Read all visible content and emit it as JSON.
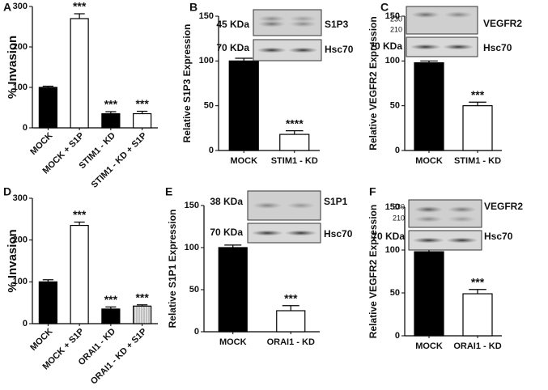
{
  "chart_data": [
    {
      "type": "bar",
      "panel_label": "A",
      "ylabel": "% Invasion",
      "categories": [
        "MOCK",
        "MOCK + S1P",
        "STIM1 - KD",
        "STIM1 - KD + S1P"
      ],
      "values": [
        100,
        270,
        35,
        35
      ],
      "errors": [
        3,
        12,
        5,
        6
      ],
      "annotations": [
        null,
        "***",
        "***",
        "***"
      ],
      "colors": [
        "#000000",
        "#ffffff",
        "#000000",
        "#ffffff"
      ],
      "hatch": [
        false,
        false,
        false,
        false
      ],
      "ylim": [
        0,
        300
      ],
      "yticks": [
        0,
        100,
        200,
        300
      ]
    },
    {
      "type": "bar",
      "panel_label": "B",
      "ylabel": "Relative S1P3 Expression",
      "categories": [
        "MOCK",
        "STIM1 - KD"
      ],
      "values": [
        100,
        18
      ],
      "errors": [
        3,
        4
      ],
      "annotations": [
        null,
        "****"
      ],
      "colors": [
        "#000000",
        "#ffffff"
      ],
      "hatch": [
        false,
        false
      ],
      "ylim": [
        0,
        150
      ],
      "yticks": [
        0,
        50,
        100,
        150
      ],
      "blot_labels": [
        "45 KDa",
        "S1P3",
        "70 KDa",
        "Hsc70"
      ]
    },
    {
      "type": "bar",
      "panel_label": "C",
      "ylabel": "Relative VEGFR2 Expression",
      "categories": [
        "MOCK",
        "STIM1 - KD"
      ],
      "values": [
        98,
        50
      ],
      "errors": [
        2,
        4
      ],
      "annotations": [
        null,
        "***"
      ],
      "colors": [
        "#000000",
        "#ffffff"
      ],
      "hatch": [
        false,
        false
      ],
      "ylim": [
        0,
        150
      ],
      "yticks": [
        0,
        50,
        100,
        150
      ],
      "blot_labels": [
        "230",
        "210",
        "VEGFR2",
        "70 KDa",
        "Hsc70"
      ]
    },
    {
      "type": "bar",
      "panel_label": "D",
      "ylabel": "% Invasion",
      "categories": [
        "MOCK",
        "MOCK + S1P",
        "ORAI1 - KD",
        "ORAI1 - KD + S1P"
      ],
      "values": [
        100,
        235,
        35,
        42
      ],
      "errors": [
        5,
        8,
        5,
        3
      ],
      "annotations": [
        null,
        "***",
        "***",
        "***"
      ],
      "colors": [
        "#000000",
        "#ffffff",
        "#000000",
        "#d9d9d9"
      ],
      "hatch": [
        false,
        false,
        false,
        true
      ],
      "ylim": [
        0,
        300
      ],
      "yticks": [
        0,
        100,
        200,
        300
      ]
    },
    {
      "type": "bar",
      "panel_label": "E",
      "ylabel": "Relative S1P1 Expression",
      "categories": [
        "MOCK",
        "ORAI1 - KD"
      ],
      "values": [
        100,
        25
      ],
      "errors": [
        3,
        6
      ],
      "annotations": [
        null,
        "***"
      ],
      "colors": [
        "#000000",
        "#ffffff"
      ],
      "hatch": [
        false,
        false
      ],
      "ylim": [
        0,
        150
      ],
      "yticks": [
        0,
        50,
        100,
        150
      ],
      "blot_labels": [
        "38 KDa",
        "S1P1",
        "70 KDa",
        "Hsc70"
      ]
    },
    {
      "type": "bar",
      "panel_label": "F",
      "ylabel": "Relative VEGFR2 Expression",
      "categories": [
        "MOCK",
        "ORAI1 - KD"
      ],
      "values": [
        98,
        49
      ],
      "errors": [
        3,
        5
      ],
      "annotations": [
        null,
        "***"
      ],
      "colors": [
        "#000000",
        "#ffffff"
      ],
      "hatch": [
        false,
        false
      ],
      "ylim": [
        0,
        150
      ],
      "yticks": [
        0,
        50,
        100,
        150
      ],
      "blot_labels": [
        "230",
        "210",
        "VEGFR2",
        "70 KDa",
        "Hsc70"
      ]
    }
  ]
}
